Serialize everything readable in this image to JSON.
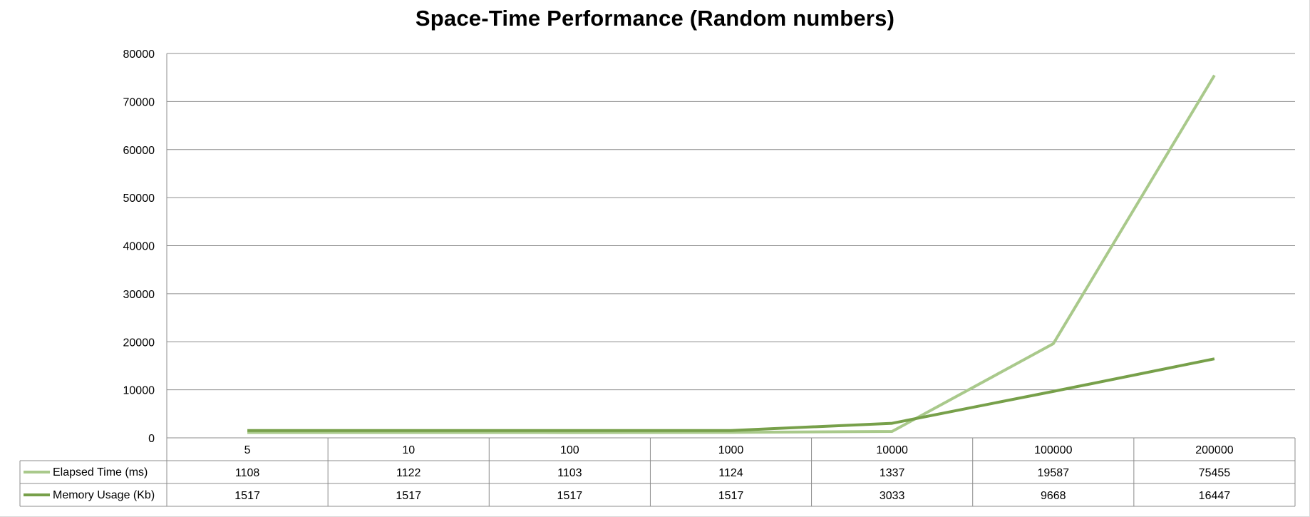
{
  "chart_data": {
    "type": "line",
    "title": "Space-Time Performance (Random numbers)",
    "categories": [
      "5",
      "10",
      "100",
      "1000",
      "10000",
      "100000",
      "200000"
    ],
    "y_ticks": [
      "0",
      "10000",
      "20000",
      "30000",
      "40000",
      "50000",
      "60000",
      "70000",
      "80000"
    ],
    "ylim": [
      0,
      80000
    ],
    "grid": true,
    "legend": "data-table",
    "series": [
      {
        "name": "Elapsed Time (ms)",
        "color": "#a9c98b",
        "values": [
          1108,
          1122,
          1103,
          1124,
          1337,
          19587,
          75455
        ]
      },
      {
        "name": "Memory Usage (Kb)",
        "color": "#77a04a",
        "values": [
          1517,
          1517,
          1517,
          1517,
          3033,
          9668,
          16447
        ]
      }
    ]
  }
}
